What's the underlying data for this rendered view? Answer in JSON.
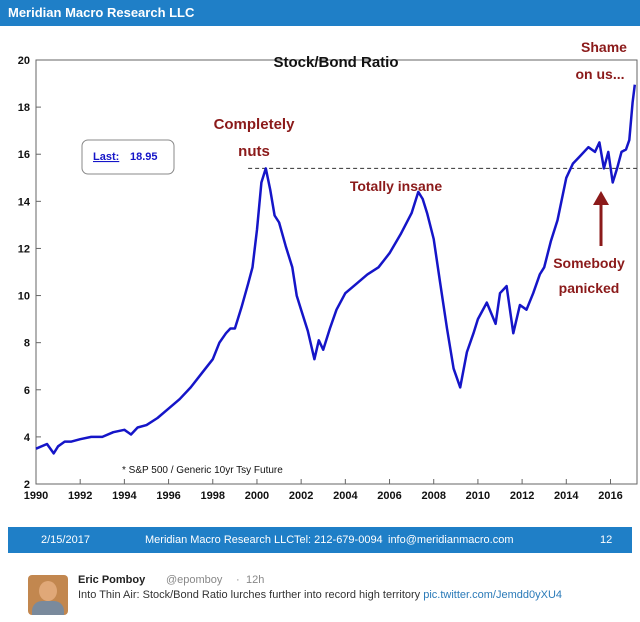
{
  "header": {
    "title": "Meridian Macro Research LLC"
  },
  "chart_data": {
    "type": "line",
    "title": "Stock/Bond Ratio",
    "xlabel": "",
    "ylabel": "",
    "xlim": [
      1990,
      2017.2
    ],
    "ylim": [
      2,
      20
    ],
    "xticks": [
      "1990",
      "1992",
      "1994",
      "1996",
      "1998",
      "2000",
      "2002",
      "2004",
      "2006",
      "2008",
      "2010",
      "2012",
      "2014",
      "2016"
    ],
    "yticks": [
      "2",
      "4",
      "6",
      "8",
      "10",
      "12",
      "14",
      "16",
      "18",
      "20"
    ],
    "grid": false,
    "series": [
      {
        "name": "",
        "x": [
          1990.0,
          1990.5,
          1990.8,
          1991.0,
          1991.3,
          1991.6,
          1992.0,
          1992.5,
          1993.0,
          1993.5,
          1994.0,
          1994.3,
          1994.6,
          1995.0,
          1995.5,
          1996.0,
          1996.5,
          1997.0,
          1997.5,
          1998.0,
          1998.3,
          1998.6,
          1998.8,
          1999.0,
          1999.3,
          1999.6,
          1999.8,
          2000.0,
          2000.2,
          2000.4,
          2000.6,
          2000.8,
          2001.0,
          2001.3,
          2001.6,
          2001.8,
          2002.0,
          2002.3,
          2002.6,
          2002.8,
          2003.0,
          2003.3,
          2003.6,
          2004.0,
          2004.5,
          2005.0,
          2005.5,
          2006.0,
          2006.5,
          2007.0,
          2007.3,
          2007.5,
          2007.7,
          2008.0,
          2008.3,
          2008.6,
          2008.9,
          2009.2,
          2009.5,
          2009.8,
          2010.0,
          2010.4,
          2010.8,
          2011.0,
          2011.3,
          2011.6,
          2011.9,
          2012.2,
          2012.5,
          2012.8,
          2013.0,
          2013.3,
          2013.6,
          2014.0,
          2014.3,
          2014.6,
          2015.0,
          2015.3,
          2015.5,
          2015.7,
          2015.9,
          2016.1,
          2016.3,
          2016.5,
          2016.7,
          2016.85,
          2017.0,
          2017.1
        ],
        "values": [
          3.5,
          3.7,
          3.3,
          3.6,
          3.8,
          3.8,
          3.9,
          4.0,
          4.0,
          4.2,
          4.3,
          4.1,
          4.4,
          4.5,
          4.8,
          5.2,
          5.6,
          6.1,
          6.7,
          7.3,
          8.0,
          8.4,
          8.6,
          8.6,
          9.5,
          10.5,
          11.2,
          12.8,
          14.8,
          15.4,
          14.5,
          13.4,
          13.1,
          12.1,
          11.2,
          10.0,
          9.4,
          8.5,
          7.3,
          8.1,
          7.7,
          8.6,
          9.4,
          10.1,
          10.5,
          10.9,
          11.2,
          11.8,
          12.6,
          13.5,
          14.4,
          14.1,
          13.5,
          12.4,
          10.5,
          8.6,
          6.9,
          6.1,
          7.6,
          8.4,
          9.0,
          9.7,
          8.8,
          10.1,
          10.4,
          8.4,
          9.6,
          9.4,
          10.1,
          10.9,
          11.2,
          12.3,
          13.2,
          15.0,
          15.6,
          15.9,
          16.3,
          16.1,
          16.5,
          15.4,
          16.1,
          14.8,
          15.4,
          16.1,
          16.2,
          16.6,
          18.2,
          18.95
        ]
      }
    ],
    "reference_line": {
      "y": 15.4,
      "x_range": [
        1999.6,
        2017.2
      ],
      "style": "dashed"
    },
    "legend_box": {
      "label": "Last:",
      "value": "18.95"
    },
    "annotations": {
      "peak1": [
        "Completely",
        "nuts"
      ],
      "peak2": "Totally insane",
      "top": [
        "Shame",
        "on us..."
      ],
      "dip": [
        "Somebody",
        "panicked"
      ]
    },
    "footnote": "* S&P 500 / Generic 10yr Tsy Future",
    "colors": {
      "line": "#1515c8",
      "annotation": "#8b1a1a",
      "header": "#1f7fc7",
      "axis": "#000000"
    }
  },
  "footer": {
    "date": "2/15/2017",
    "company": "Meridian Macro Research LLC",
    "tel": "Tel: 212-679-0094",
    "email": "info@meridianmacro.com",
    "page": "12"
  },
  "tweet": {
    "name": "Eric Pomboy",
    "handle": "@epomboy",
    "time": "12h",
    "text": "Into Thin Air: Stock/Bond Ratio lurches further into record high territory",
    "link": "pic.twitter.com/Jemdd0yXU4"
  }
}
